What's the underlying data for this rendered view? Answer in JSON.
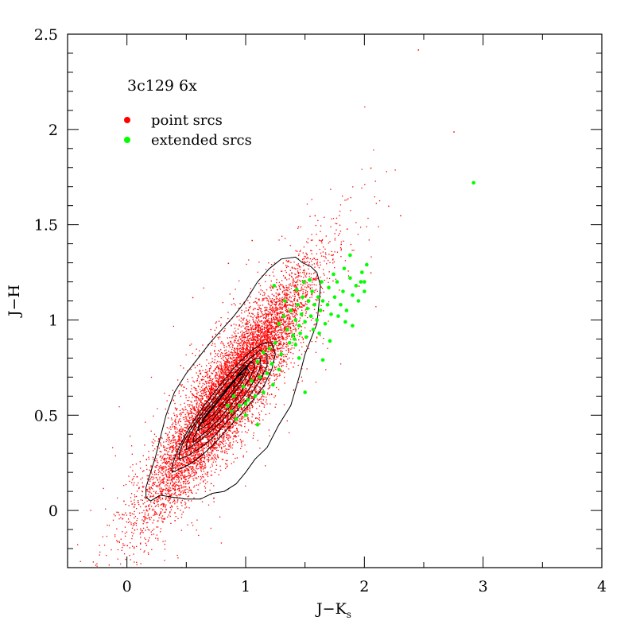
{
  "chart_data": {
    "type": "scatter",
    "title": "3c129 6x",
    "xlabel": "J−K",
    "xlabel_sub": "s",
    "ylabel": "J−H",
    "xlim": [
      -0.5,
      4
    ],
    "ylim": [
      -0.3,
      2.5
    ],
    "x_ticks": [
      0,
      1,
      2,
      3,
      4
    ],
    "y_ticks": [
      0,
      0.5,
      1,
      1.5,
      2,
      2.5
    ],
    "x_tick_labels": [
      "0",
      "1",
      "2",
      "3",
      "4"
    ],
    "y_tick_labels": [
      "0",
      "0.5",
      "1",
      "1.5",
      "2",
      "2.5"
    ],
    "legend": {
      "placement": "top-left"
    },
    "series": [
      {
        "name": "point srcs",
        "color": "#ff0000",
        "marker": "dot",
        "distribution": {
          "center": [
            0.85,
            0.62
          ],
          "slope": 0.9,
          "spread_major": 0.42,
          "spread_minor": 0.09,
          "count": 9000
        },
        "outliers": [
          [
            0.08,
            0.18
          ],
          [
            0.06,
            -0.1
          ],
          [
            0.16,
            -0.18
          ],
          [
            0.4,
            -0.05
          ],
          [
            1.6,
            1.32
          ],
          [
            1.8,
            1.4
          ],
          [
            2.05,
            1.8
          ],
          [
            2.2,
            1.6
          ],
          [
            2.45,
            2.42
          ],
          [
            2.75,
            1.99
          ],
          [
            1.58,
            1.55
          ],
          [
            1.85,
            1.48
          ],
          [
            2.3,
            1.55
          ],
          [
            0.85,
            1.3
          ],
          [
            0.55,
            1.12
          ],
          [
            1.05,
            1.42
          ],
          [
            2.05,
            1.25
          ],
          [
            1.95,
            1.18
          ]
        ]
      },
      {
        "name": "extended srcs",
        "color": "#00ff00",
        "marker": "circle",
        "points": [
          [
            1.28,
            0.98
          ],
          [
            1.32,
            1.02
          ],
          [
            1.35,
            0.95
          ],
          [
            1.38,
            1.05
          ],
          [
            1.4,
            0.92
          ],
          [
            1.42,
            1.0
          ],
          [
            1.44,
            1.08
          ],
          [
            1.45,
            0.97
          ],
          [
            1.47,
            1.03
          ],
          [
            1.48,
            1.12
          ],
          [
            1.5,
            0.99
          ],
          [
            1.52,
            1.06
          ],
          [
            1.53,
            1.1
          ],
          [
            1.55,
            1.02
          ],
          [
            1.56,
            1.15
          ],
          [
            1.58,
            1.08
          ],
          [
            1.6,
            1.0
          ],
          [
            1.61,
            1.12
          ],
          [
            1.63,
            1.05
          ],
          [
            1.65,
            1.1
          ],
          [
            1.67,
            0.98
          ],
          [
            1.69,
            1.08
          ],
          [
            1.7,
            1.17
          ],
          [
            1.72,
            1.03
          ],
          [
            1.75,
            1.12
          ],
          [
            1.77,
            1.2
          ],
          [
            1.8,
            1.08
          ],
          [
            1.82,
            1.15
          ],
          [
            1.85,
            1.05
          ],
          [
            1.88,
            1.22
          ],
          [
            1.9,
            1.13
          ],
          [
            1.93,
            1.18
          ],
          [
            1.95,
            1.1
          ],
          [
            1.98,
            1.25
          ],
          [
            2.0,
            1.15
          ],
          [
            2.02,
            1.29
          ],
          [
            1.37,
            0.88
          ],
          [
            1.41,
            0.9
          ],
          [
            1.46,
            0.93
          ],
          [
            1.51,
            0.91
          ],
          [
            1.57,
            0.95
          ],
          [
            1.62,
            0.93
          ],
          [
            1.33,
            1.1
          ],
          [
            1.43,
            1.16
          ],
          [
            1.49,
            1.2
          ],
          [
            1.54,
            1.21
          ],
          [
            1.64,
            1.2
          ],
          [
            1.74,
            1.24
          ],
          [
            1.83,
            1.27
          ],
          [
            1.88,
            1.34
          ],
          [
            1.97,
            1.2
          ],
          [
            2.0,
            1.2
          ],
          [
            1.78,
            1.02
          ],
          [
            1.84,
            0.99
          ],
          [
            1.9,
            0.97
          ],
          [
            1.3,
            0.82
          ],
          [
            1.25,
            0.88
          ],
          [
            1.2,
            0.85
          ],
          [
            1.15,
            0.83
          ],
          [
            1.1,
            0.78
          ],
          [
            1.22,
            0.77
          ],
          [
            1.28,
            0.74
          ],
          [
            1.18,
            0.72
          ],
          [
            1.12,
            0.7
          ],
          [
            1.05,
            0.68
          ],
          [
            0.98,
            0.65
          ],
          [
            1.08,
            0.6
          ],
          [
            1.02,
            0.58
          ],
          [
            0.95,
            0.55
          ],
          [
            0.88,
            0.52
          ],
          [
            0.92,
            0.48
          ],
          [
            1.0,
            0.5
          ],
          [
            1.15,
            0.62
          ],
          [
            1.23,
            0.66
          ],
          [
            1.1,
            0.45
          ],
          [
            0.85,
            0.55
          ],
          [
            0.9,
            0.6
          ],
          [
            1.0,
            0.56
          ],
          [
            1.24,
            1.18
          ],
          [
            1.42,
            0.87
          ],
          [
            1.5,
            0.62
          ],
          [
            1.65,
            0.79
          ],
          [
            1.71,
            0.89
          ],
          [
            1.45,
            0.8
          ],
          [
            2.92,
            1.72
          ]
        ]
      }
    ],
    "contours": [
      [
        [
          0.16,
          0.07
        ],
        [
          0.2,
          0.05
        ],
        [
          0.28,
          0.08
        ],
        [
          0.38,
          0.07
        ],
        [
          0.5,
          0.06
        ],
        [
          0.62,
          0.06
        ],
        [
          0.72,
          0.09
        ],
        [
          0.82,
          0.1
        ],
        [
          0.92,
          0.14
        ],
        [
          1.0,
          0.2
        ],
        [
          1.08,
          0.27
        ],
        [
          1.18,
          0.33
        ],
        [
          1.28,
          0.45
        ],
        [
          1.38,
          0.55
        ],
        [
          1.45,
          0.7
        ],
        [
          1.5,
          0.82
        ],
        [
          1.55,
          0.9
        ],
        [
          1.6,
          0.98
        ],
        [
          1.62,
          1.1
        ],
        [
          1.63,
          1.18
        ],
        [
          1.6,
          1.25
        ],
        [
          1.55,
          1.28
        ],
        [
          1.48,
          1.3
        ],
        [
          1.42,
          1.33
        ],
        [
          1.3,
          1.32
        ],
        [
          1.2,
          1.27
        ],
        [
          1.1,
          1.2
        ],
        [
          1.0,
          1.1
        ],
        [
          0.9,
          1.02
        ],
        [
          0.8,
          0.95
        ],
        [
          0.7,
          0.88
        ],
        [
          0.6,
          0.8
        ],
        [
          0.5,
          0.72
        ],
        [
          0.4,
          0.62
        ],
        [
          0.33,
          0.5
        ],
        [
          0.28,
          0.38
        ],
        [
          0.24,
          0.28
        ],
        [
          0.2,
          0.2
        ],
        [
          0.16,
          0.12
        ],
        [
          0.16,
          0.07
        ]
      ],
      [
        [
          0.38,
          0.2
        ],
        [
          0.45,
          0.22
        ],
        [
          0.55,
          0.25
        ],
        [
          0.65,
          0.3
        ],
        [
          0.75,
          0.36
        ],
        [
          0.85,
          0.43
        ],
        [
          0.95,
          0.5
        ],
        [
          1.05,
          0.57
        ],
        [
          1.15,
          0.65
        ],
        [
          1.22,
          0.74
        ],
        [
          1.25,
          0.82
        ],
        [
          1.22,
          0.88
        ],
        [
          1.15,
          0.88
        ],
        [
          1.05,
          0.84
        ],
        [
          0.95,
          0.78
        ],
        [
          0.85,
          0.71
        ],
        [
          0.75,
          0.63
        ],
        [
          0.65,
          0.55
        ],
        [
          0.55,
          0.46
        ],
        [
          0.47,
          0.37
        ],
        [
          0.41,
          0.29
        ],
        [
          0.38,
          0.23
        ],
        [
          0.38,
          0.2
        ]
      ],
      [
        [
          0.44,
          0.27
        ],
        [
          0.52,
          0.29
        ],
        [
          0.62,
          0.33
        ],
        [
          0.72,
          0.38
        ],
        [
          0.82,
          0.45
        ],
        [
          0.92,
          0.52
        ],
        [
          1.02,
          0.59
        ],
        [
          1.12,
          0.68
        ],
        [
          1.18,
          0.76
        ],
        [
          1.18,
          0.82
        ],
        [
          1.12,
          0.84
        ],
        [
          1.02,
          0.79
        ],
        [
          0.92,
          0.73
        ],
        [
          0.82,
          0.66
        ],
        [
          0.72,
          0.58
        ],
        [
          0.62,
          0.5
        ],
        [
          0.53,
          0.42
        ],
        [
          0.47,
          0.35
        ],
        [
          0.44,
          0.3
        ],
        [
          0.44,
          0.27
        ]
      ],
      [
        [
          0.5,
          0.32
        ],
        [
          0.6,
          0.36
        ],
        [
          0.7,
          0.41
        ],
        [
          0.8,
          0.47
        ],
        [
          0.9,
          0.54
        ],
        [
          1.0,
          0.61
        ],
        [
          1.08,
          0.69
        ],
        [
          1.13,
          0.76
        ],
        [
          1.12,
          0.8
        ],
        [
          1.06,
          0.79
        ],
        [
          0.98,
          0.74
        ],
        [
          0.88,
          0.67
        ],
        [
          0.78,
          0.6
        ],
        [
          0.68,
          0.53
        ],
        [
          0.58,
          0.45
        ],
        [
          0.52,
          0.38
        ],
        [
          0.5,
          0.34
        ],
        [
          0.5,
          0.32
        ]
      ],
      [
        [
          0.56,
          0.36
        ],
        [
          0.66,
          0.41
        ],
        [
          0.76,
          0.47
        ],
        [
          0.86,
          0.54
        ],
        [
          0.96,
          0.62
        ],
        [
          1.04,
          0.7
        ],
        [
          1.08,
          0.76
        ],
        [
          1.05,
          0.78
        ],
        [
          0.97,
          0.73
        ],
        [
          0.87,
          0.66
        ],
        [
          0.77,
          0.58
        ],
        [
          0.67,
          0.5
        ],
        [
          0.6,
          0.43
        ],
        [
          0.56,
          0.38
        ],
        [
          0.56,
          0.36
        ]
      ],
      [
        [
          0.6,
          0.42
        ],
        [
          0.7,
          0.46
        ],
        [
          0.78,
          0.52
        ],
        [
          0.88,
          0.6
        ],
        [
          0.97,
          0.67
        ],
        [
          1.03,
          0.73
        ],
        [
          1.01,
          0.75
        ],
        [
          0.93,
          0.7
        ],
        [
          0.83,
          0.62
        ],
        [
          0.73,
          0.54
        ],
        [
          0.65,
          0.48
        ],
        [
          0.6,
          0.44
        ],
        [
          0.6,
          0.42
        ]
      ],
      [
        [
          0.64,
          0.46
        ],
        [
          0.72,
          0.5
        ],
        [
          0.8,
          0.56
        ],
        [
          0.88,
          0.62
        ],
        [
          0.95,
          0.68
        ],
        [
          0.98,
          0.72
        ],
        [
          0.93,
          0.7
        ],
        [
          0.85,
          0.64
        ],
        [
          0.77,
          0.58
        ],
        [
          0.69,
          0.52
        ],
        [
          0.64,
          0.48
        ],
        [
          0.64,
          0.46
        ]
      ],
      [
        [
          0.9,
          0.64
        ],
        [
          0.98,
          0.7
        ],
        [
          1.02,
          0.76
        ],
        [
          0.98,
          0.76
        ],
        [
          0.92,
          0.7
        ],
        [
          0.9,
          0.66
        ],
        [
          0.9,
          0.64
        ]
      ]
    ]
  }
}
